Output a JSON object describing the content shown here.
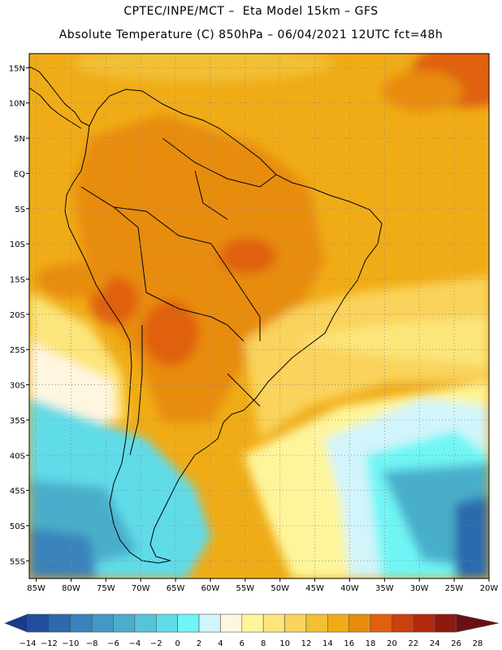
{
  "header": {
    "line1": "CPTEC/INPE/MCT –  Eta Model 15km – GFS",
    "line2": "Absolute Temperature (C) 850hPa – 06/04/2021 12UTC fct=48h"
  },
  "map": {
    "lat_labels": [
      "15N",
      "10N",
      "5N",
      "EQ",
      "5S",
      "10S",
      "15S",
      "20S",
      "25S",
      "30S",
      "35S",
      "40S",
      "45S",
      "50S",
      "55S"
    ],
    "lon_labels": [
      "85W",
      "80W",
      "75W",
      "70W",
      "65W",
      "60W",
      "55W",
      "50W",
      "45W",
      "40W",
      "35W",
      "30W",
      "25W",
      "20W"
    ],
    "lat_range": [
      17,
      -57.5
    ],
    "lon_range": [
      -86,
      -20
    ],
    "grid": "dotted"
  },
  "colorbar": {
    "tick_labels": [
      "-14",
      "-12",
      "-10",
      "-8",
      "-6",
      "-4",
      "-2",
      "0",
      "2",
      "4",
      "6",
      "8",
      "10",
      "12",
      "14",
      "16",
      "18",
      "20",
      "22",
      "24",
      "26",
      "28"
    ],
    "colors": [
      "#1a3a8c",
      "#1f4f9e",
      "#2c6aad",
      "#3a82bb",
      "#4797c6",
      "#4aaecb",
      "#56c4d8",
      "#60dbe8",
      "#6ff5f5",
      "#d2f4fb",
      "#fff6e0",
      "#fef59a",
      "#fce57a",
      "#f9d35c",
      "#f2bf35",
      "#f0ac17",
      "#e88c10",
      "#e06010",
      "#cc4010",
      "#b22a0e",
      "#8c1a10",
      "#6a1010"
    ]
  }
}
